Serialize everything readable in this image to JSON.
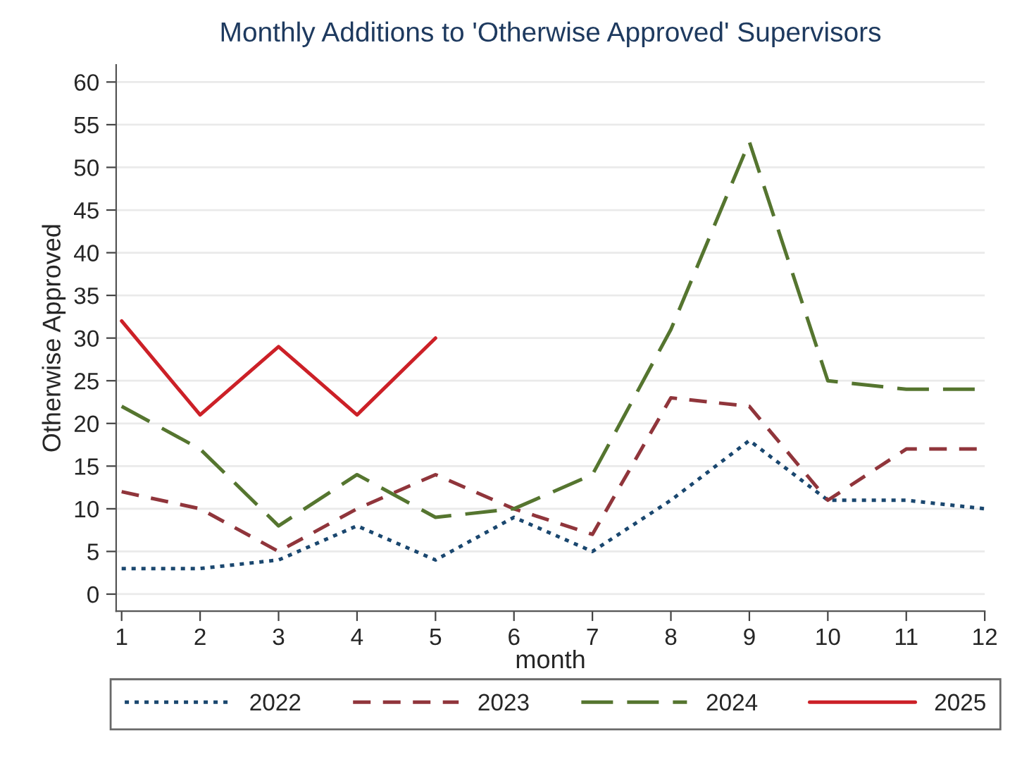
{
  "chart_data": {
    "type": "line",
    "title": "Monthly Additions to 'Otherwise Approved' Supervisors",
    "xlabel": "month",
    "ylabel": "Otherwise Approved",
    "x": [
      1,
      2,
      3,
      4,
      5,
      6,
      7,
      8,
      9,
      10,
      11,
      12
    ],
    "series": [
      {
        "name": "2022",
        "color": "#1a476f",
        "line_style": "dotted",
        "values": [
          3,
          3,
          4,
          8,
          4,
          9,
          5,
          11,
          18,
          11,
          11,
          10
        ]
      },
      {
        "name": "2023",
        "color": "#90353b",
        "line_style": "dashed",
        "values": [
          12,
          10,
          5,
          10,
          14,
          10,
          7,
          23,
          22,
          11,
          17,
          17
        ]
      },
      {
        "name": "2024",
        "color": "#55752f",
        "line_style": "longdash",
        "values": [
          22,
          17,
          8,
          14,
          9,
          10,
          14,
          31,
          53,
          25,
          24,
          24
        ]
      },
      {
        "name": "2025",
        "color": "#cc2027",
        "line_style": "solid",
        "values": [
          32,
          21,
          29,
          21,
          30,
          null,
          null,
          null,
          null,
          null,
          null,
          null
        ]
      }
    ],
    "xlim": [
      0.93,
      12
    ],
    "xticks": [
      1,
      2,
      3,
      4,
      5,
      6,
      7,
      8,
      9,
      10,
      11,
      12
    ],
    "ylim": [
      -2,
      62
    ],
    "yticks": [
      0,
      5,
      10,
      15,
      20,
      25,
      30,
      35,
      40,
      45,
      50,
      55,
      60
    ],
    "grid": "y",
    "legend": "bottom",
    "marker": "none"
  }
}
